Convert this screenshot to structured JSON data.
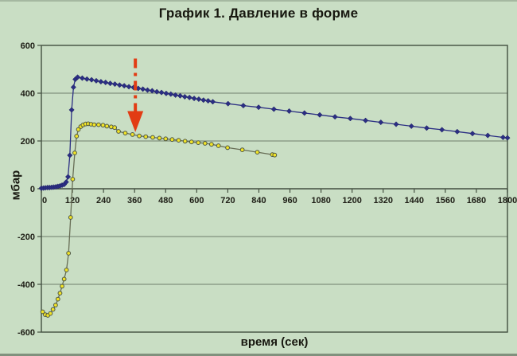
{
  "chart_data": {
    "type": "line",
    "title": "График 1. Давление в форме",
    "xlabel": "время (сек)",
    "ylabel": "мбар",
    "xlim": [
      0,
      1800
    ],
    "ylim": [
      -600,
      600
    ],
    "x_ticks": [
      0,
      120,
      240,
      360,
      480,
      600,
      720,
      840,
      960,
      1080,
      1200,
      1320,
      1440,
      1560,
      1680,
      1800
    ],
    "y_ticks": [
      -600,
      -400,
      -200,
      0,
      200,
      400,
      600
    ],
    "grid": "horizontal-only",
    "legend": "none",
    "colors": {
      "background": "#c9dec4",
      "grid": "#6e7d6c",
      "axis": "#434f40",
      "text": "#1d1d15",
      "series_blue": "#2b2e83",
      "series_yellow_fill": "#f2e428",
      "series_yellow_stroke": "#4e5743",
      "series_yellow_line": "#676d55",
      "arrow_red": "#e23c14"
    },
    "series": [
      {
        "id": "blue",
        "name": "верхняя кривая (синие ромбы)",
        "marker": "diamond",
        "line_color": "#2b2e83",
        "marker_fill": "#2b2e83",
        "marker_stroke": "#1c1e5e",
        "points": [
          [
            0,
            2
          ],
          [
            8,
            3
          ],
          [
            16,
            4
          ],
          [
            24,
            5
          ],
          [
            32,
            5
          ],
          [
            40,
            6
          ],
          [
            48,
            7
          ],
          [
            56,
            8
          ],
          [
            64,
            10
          ],
          [
            72,
            12
          ],
          [
            80,
            15
          ],
          [
            88,
            18
          ],
          [
            96,
            28
          ],
          [
            103,
            50
          ],
          [
            110,
            140
          ],
          [
            117,
            330
          ],
          [
            124,
            425
          ],
          [
            131,
            458
          ],
          [
            140,
            467
          ],
          [
            158,
            463
          ],
          [
            176,
            459
          ],
          [
            194,
            456
          ],
          [
            212,
            452
          ],
          [
            230,
            448
          ],
          [
            248,
            445
          ],
          [
            266,
            441
          ],
          [
            284,
            438
          ],
          [
            302,
            434
          ],
          [
            320,
            431
          ],
          [
            338,
            427
          ],
          [
            356,
            424
          ],
          [
            374,
            420
          ],
          [
            392,
            417
          ],
          [
            410,
            413
          ],
          [
            428,
            410
          ],
          [
            446,
            406
          ],
          [
            464,
            403
          ],
          [
            482,
            399
          ],
          [
            500,
            396
          ],
          [
            518,
            392
          ],
          [
            536,
            389
          ],
          [
            554,
            385
          ],
          [
            572,
            382
          ],
          [
            590,
            378
          ],
          [
            608,
            375
          ],
          [
            626,
            371
          ],
          [
            644,
            368
          ],
          [
            662,
            364
          ],
          [
            721,
            356
          ],
          [
            780,
            348
          ],
          [
            839,
            341
          ],
          [
            898,
            333
          ],
          [
            957,
            325
          ],
          [
            1016,
            317
          ],
          [
            1075,
            309
          ],
          [
            1134,
            301
          ],
          [
            1193,
            294
          ],
          [
            1252,
            286
          ],
          [
            1311,
            278
          ],
          [
            1370,
            270
          ],
          [
            1429,
            262
          ],
          [
            1488,
            254
          ],
          [
            1547,
            247
          ],
          [
            1606,
            239
          ],
          [
            1665,
            231
          ],
          [
            1724,
            223
          ],
          [
            1783,
            215
          ],
          [
            1800,
            213
          ]
        ]
      },
      {
        "id": "yellow",
        "name": "нижняя кривая (жёлтые кружки)",
        "marker": "circle",
        "line_color": "#676d55",
        "marker_fill": "#f2e428",
        "marker_stroke": "#4e5743",
        "points": [
          [
            5,
            -515
          ],
          [
            15,
            -527
          ],
          [
            25,
            -530
          ],
          [
            35,
            -522
          ],
          [
            45,
            -505
          ],
          [
            55,
            -487
          ],
          [
            64,
            -462
          ],
          [
            72,
            -437
          ],
          [
            80,
            -408
          ],
          [
            88,
            -378
          ],
          [
            97,
            -340
          ],
          [
            105,
            -270
          ],
          [
            113,
            -120
          ],
          [
            121,
            40
          ],
          [
            129,
            150
          ],
          [
            136,
            220
          ],
          [
            143,
            248
          ],
          [
            152,
            260
          ],
          [
            161,
            267
          ],
          [
            171,
            271
          ],
          [
            181,
            272
          ],
          [
            192,
            270
          ],
          [
            204,
            268
          ],
          [
            221,
            268
          ],
          [
            238,
            266
          ],
          [
            253,
            262
          ],
          [
            270,
            259
          ],
          [
            283,
            256
          ],
          [
            298,
            240
          ],
          [
            324,
            233
          ],
          [
            352,
            227
          ],
          [
            378,
            221
          ],
          [
            403,
            218
          ],
          [
            430,
            215
          ],
          [
            456,
            212
          ],
          [
            480,
            209
          ],
          [
            505,
            206
          ],
          [
            530,
            203
          ],
          [
            555,
            199
          ],
          [
            580,
            196
          ],
          [
            606,
            193
          ],
          [
            632,
            190
          ],
          [
            657,
            186
          ],
          [
            684,
            180
          ],
          [
            719,
            172
          ],
          [
            776,
            163
          ],
          [
            834,
            153
          ],
          [
            892,
            143
          ],
          [
            901,
            141
          ]
        ]
      }
    ],
    "annotation": {
      "type": "arrow-down",
      "style": "dash-dot",
      "color": "#e23c14",
      "x": 363,
      "y_from": 545,
      "y_head_base": 325,
      "y_tip": 237,
      "points_to": "нижняя кривая"
    }
  }
}
